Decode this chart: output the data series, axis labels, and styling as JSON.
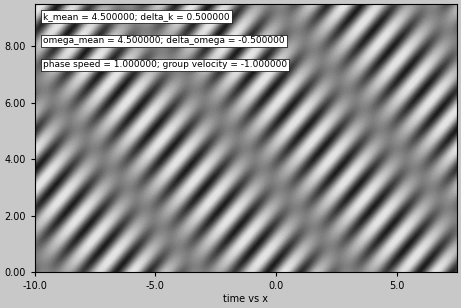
{
  "k_mean": 4.5,
  "delta_k": 0.5,
  "omega_mean": 4.5,
  "delta_omega": -0.5,
  "phase_speed": 1.0,
  "group_velocity": -1.0,
  "x_min": -10.0,
  "x_max": 7.5,
  "t_min": 0.0,
  "t_max": 9.5,
  "nx": 800,
  "nt": 800,
  "xlabel": "time vs x",
  "annotation1": "k_mean = 4.500000; delta_k = 0.500000",
  "annotation2": "omega_mean = 4.500000; delta_omega = -0.500000",
  "annotation3": "phase speed = 1.000000; group velocity = -1.000000",
  "bg_color": "#c8c8c8",
  "plot_bg_color": "#c0c0c0",
  "yticks": [
    0.0,
    2.0,
    4.0,
    6.0,
    8.0
  ],
  "xticks": [
    -10.0,
    -5.0,
    0.0,
    5.0
  ]
}
